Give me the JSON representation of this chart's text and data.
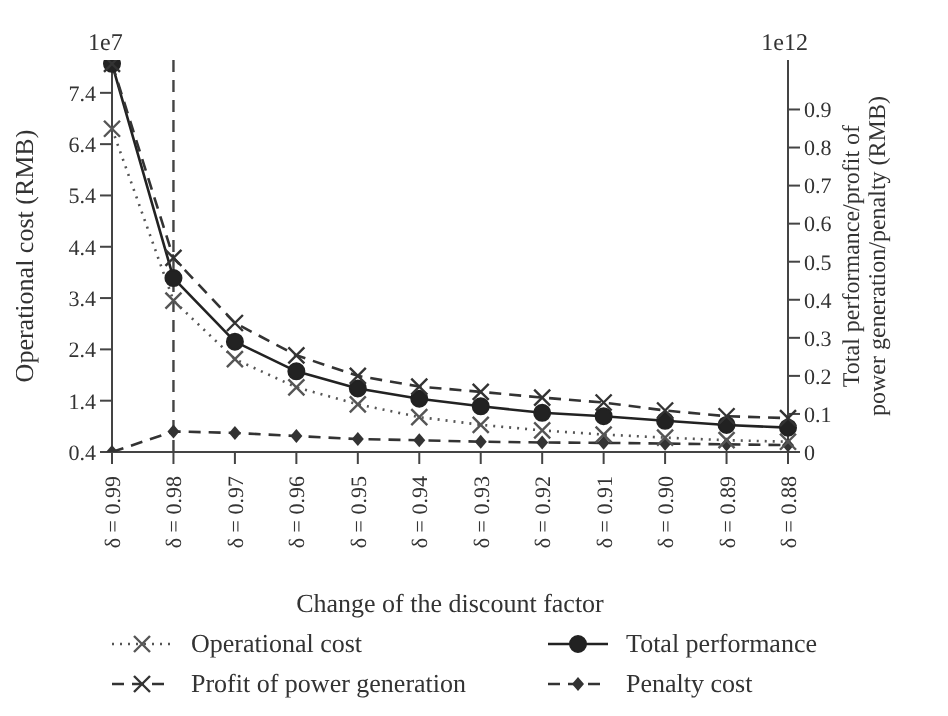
{
  "chart_data": {
    "type": "line",
    "xlabel": "Change of the discount factor",
    "ylabel": "Operational cost (RMB)",
    "y2label": "Total performance/profit of power generation/penalty (RMB)",
    "categories": [
      "δ = 0.99",
      "δ = 0.98",
      "δ = 0.97",
      "δ = 0.96",
      "δ = 0.95",
      "δ = 0.94",
      "δ = 0.93",
      "δ = 0.92",
      "δ = 0.91",
      "δ = 0.90",
      "δ = 0.89",
      "δ = 0.88"
    ],
    "series": [
      {
        "name": "Operational cost",
        "color": "#555555",
        "marker": "cross",
        "line_style": "dotted",
        "values": [
          6.7,
          3.35,
          2.21,
          1.66,
          1.33,
          1.08,
          0.93,
          0.82,
          0.74,
          0.68,
          0.63,
          0.6
        ]
      },
      {
        "name": "Profit of power generation",
        "color": "#333333",
        "marker": "cross",
        "line_style": "dashed",
        "axis": "y2",
        "values": [
          1.02,
          0.51,
          0.339,
          0.254,
          0.2,
          0.172,
          0.158,
          0.143,
          0.13,
          0.109,
          0.094,
          0.089
        ]
      },
      {
        "name": "Total performance",
        "color": "#222222",
        "marker": "circle",
        "line_style": "solid",
        "axis": "y2",
        "values": [
          1.02,
          0.457,
          0.29,
          0.212,
          0.167,
          0.14,
          0.12,
          0.103,
          0.094,
          0.082,
          0.071,
          0.064
        ]
      },
      {
        "name": "Penalty cost",
        "color": "#333333",
        "marker": "diamond",
        "line_style": "dashed",
        "axis": "y2",
        "values": [
          0,
          0.054,
          0.05,
          0.042,
          0.034,
          0.031,
          0.027,
          0.025,
          0.024,
          0.022,
          0.02,
          0.018
        ]
      }
    ],
    "ylim": [
      0.4,
      8.04
    ],
    "yticks": [
      0.4,
      1.4,
      2.4,
      3.4,
      4.4,
      5.4,
      6.4,
      7.4
    ],
    "y2lim": [
      0,
      1.03
    ],
    "y2ticks": [
      0,
      0.1,
      0.2,
      0.3,
      0.4,
      0.5,
      0.6,
      0.7,
      0.8,
      0.9
    ],
    "ref_lines": [
      {
        "axis": "x",
        "value": "δ = 0.98",
        "line_style": "dashed",
        "color": "#444444"
      }
    ],
    "annotations": [
      "1e7",
      "1e12"
    ],
    "grid": false,
    "legend": "bottom"
  }
}
